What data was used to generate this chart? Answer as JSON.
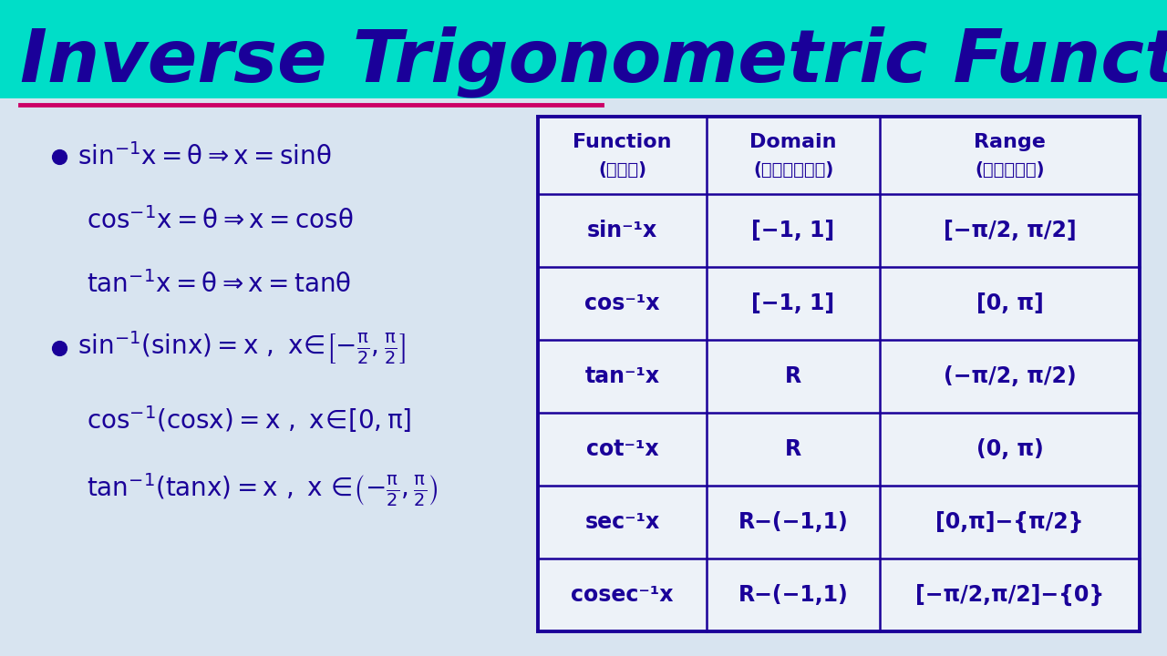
{
  "title": "Inverse Trigonometric Functions",
  "title_bg": "#00DEC8",
  "title_color": "#1a0099",
  "bg_color": "#d8e4f0",
  "underline_color": "#cc0066",
  "text_color": "#1a0099",
  "table_border_color": "#1a0099",
  "table_headers": [
    "Function\n(फलन)",
    "Domain\n(प्रांत)",
    "Range\n(परिसर)"
  ],
  "table_rows": [
    [
      "sin⁻¹x",
      "[−1, 1]",
      "[−π/2, π/2]"
    ],
    [
      "cos⁻¹x",
      "[−1, 1]",
      "[0, π]"
    ],
    [
      "tan⁻¹x",
      "R",
      "(−π/2, π/2)"
    ],
    [
      "cot⁻¹x",
      "R",
      "(0, π)"
    ],
    [
      "sec⁻¹x",
      "R−(−1,1)",
      "[0,π]−{π/2}"
    ],
    [
      "cosec⁻¹x",
      "R−(−1,1)",
      "[−π/2,π/2]−{0}"
    ]
  ]
}
